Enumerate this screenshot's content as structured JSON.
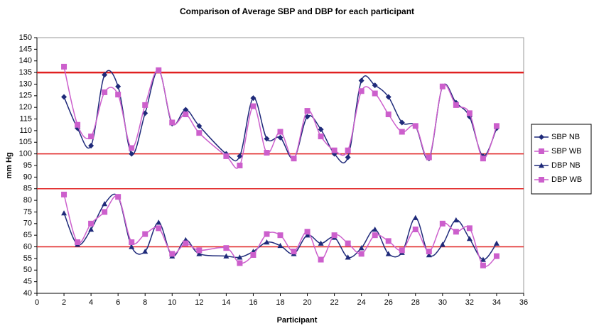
{
  "chart_data": {
    "type": "line",
    "title": "Comparison of Average SBP and DBP for each participant",
    "x_label": "Participant",
    "y_label": "mm Hg",
    "x": [
      2,
      3,
      4,
      5,
      6,
      7,
      8,
      9,
      10,
      11,
      12,
      14,
      15,
      16,
      17,
      18,
      19,
      20,
      21,
      22,
      23,
      24,
      25,
      26,
      27,
      28,
      29,
      30,
      31,
      32,
      33,
      34
    ],
    "series": [
      {
        "name": "SBP NB",
        "color": "#1f2a7a",
        "marker": "diamond",
        "values": [
          124.5,
          111,
          103.5,
          134,
          129,
          100,
          117.5,
          136,
          113,
          119,
          112,
          100,
          99,
          124,
          106.5,
          107,
          98,
          116,
          110.5,
          100,
          98.5,
          131.5,
          129.5,
          124.5,
          113.5,
          112,
          98,
          129,
          122,
          116,
          99,
          111
        ]
      },
      {
        "name": "SBP WB",
        "color": "#cc5fcc",
        "marker": "square",
        "values": [
          137.5,
          112.5,
          107.5,
          126.5,
          125.5,
          102.5,
          121,
          136,
          113.5,
          117,
          109,
          99,
          95,
          120.5,
          100.5,
          109.5,
          98,
          118.5,
          107.5,
          101.5,
          101.5,
          127,
          126,
          117,
          109.5,
          112,
          98.5,
          129,
          121,
          117.5,
          98,
          112
        ]
      },
      {
        "name": "DBP NB",
        "color": "#1f2a7a",
        "marker": "triangle",
        "values": [
          74.5,
          61,
          67.5,
          78.5,
          81.5,
          60,
          58,
          70.5,
          56,
          63,
          57,
          56,
          55.5,
          58,
          62,
          60.5,
          57,
          65,
          61.5,
          64,
          55.5,
          59.5,
          67.5,
          57,
          57.5,
          72.5,
          56.5,
          61,
          71.5,
          63.5,
          54.5,
          61.5
        ]
      },
      {
        "name": "DBP WB",
        "color": "#cc5fcc",
        "marker": "square",
        "values": [
          82.5,
          62,
          70,
          75,
          81.5,
          62,
          65.5,
          68,
          57,
          61.5,
          58.5,
          59.5,
          53,
          56.5,
          65.5,
          65,
          58,
          66.5,
          54.5,
          65,
          61.5,
          57,
          65,
          62.5,
          58.5,
          67.5,
          58,
          70,
          66.5,
          68,
          52,
          56
        ]
      }
    ],
    "reference_lines": [
      135,
      100,
      85,
      60
    ],
    "reference_color": "#e02020",
    "xlim": [
      0,
      36
    ],
    "xticks": [
      0,
      2,
      4,
      6,
      8,
      10,
      12,
      14,
      16,
      18,
      20,
      22,
      24,
      26,
      28,
      30,
      32,
      34,
      36
    ],
    "ylim": [
      40,
      150
    ],
    "yticks": [
      40,
      45,
      50,
      55,
      60,
      65,
      70,
      75,
      80,
      85,
      90,
      95,
      100,
      105,
      110,
      115,
      120,
      125,
      130,
      135,
      140,
      145,
      150
    ],
    "smooth": true,
    "legend": "right"
  }
}
